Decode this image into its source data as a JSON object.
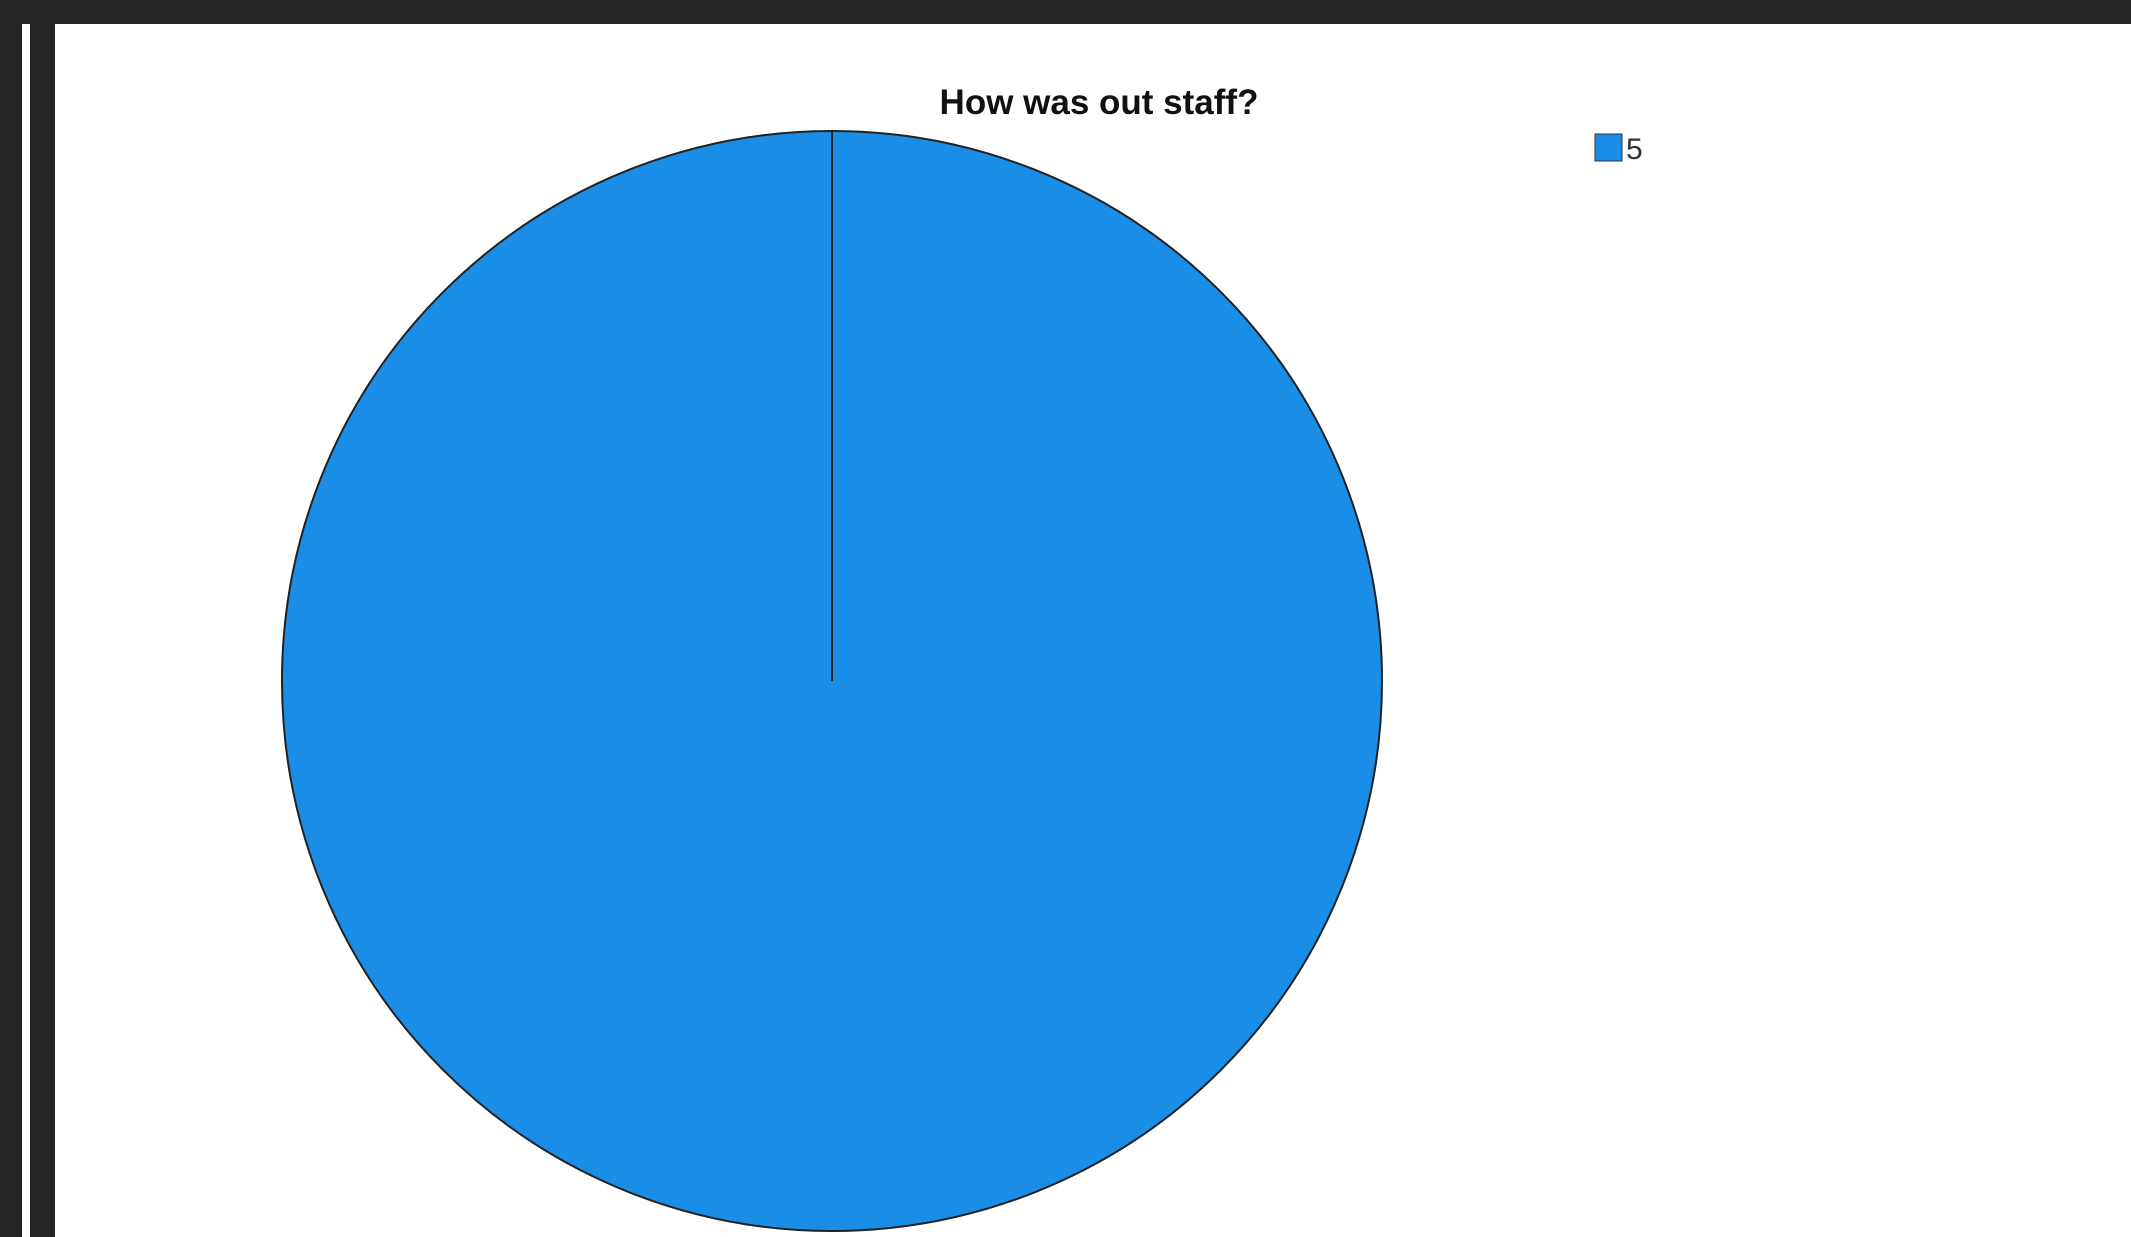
{
  "chart_data": {
    "type": "pie",
    "title": "How was out staff?",
    "categories": [
      "5"
    ],
    "values": [
      100
    ],
    "colors": [
      "#1a8de6"
    ],
    "slice_border_color": "#222222",
    "legend": {
      "placement": "top-right",
      "entries": [
        "5"
      ]
    }
  }
}
